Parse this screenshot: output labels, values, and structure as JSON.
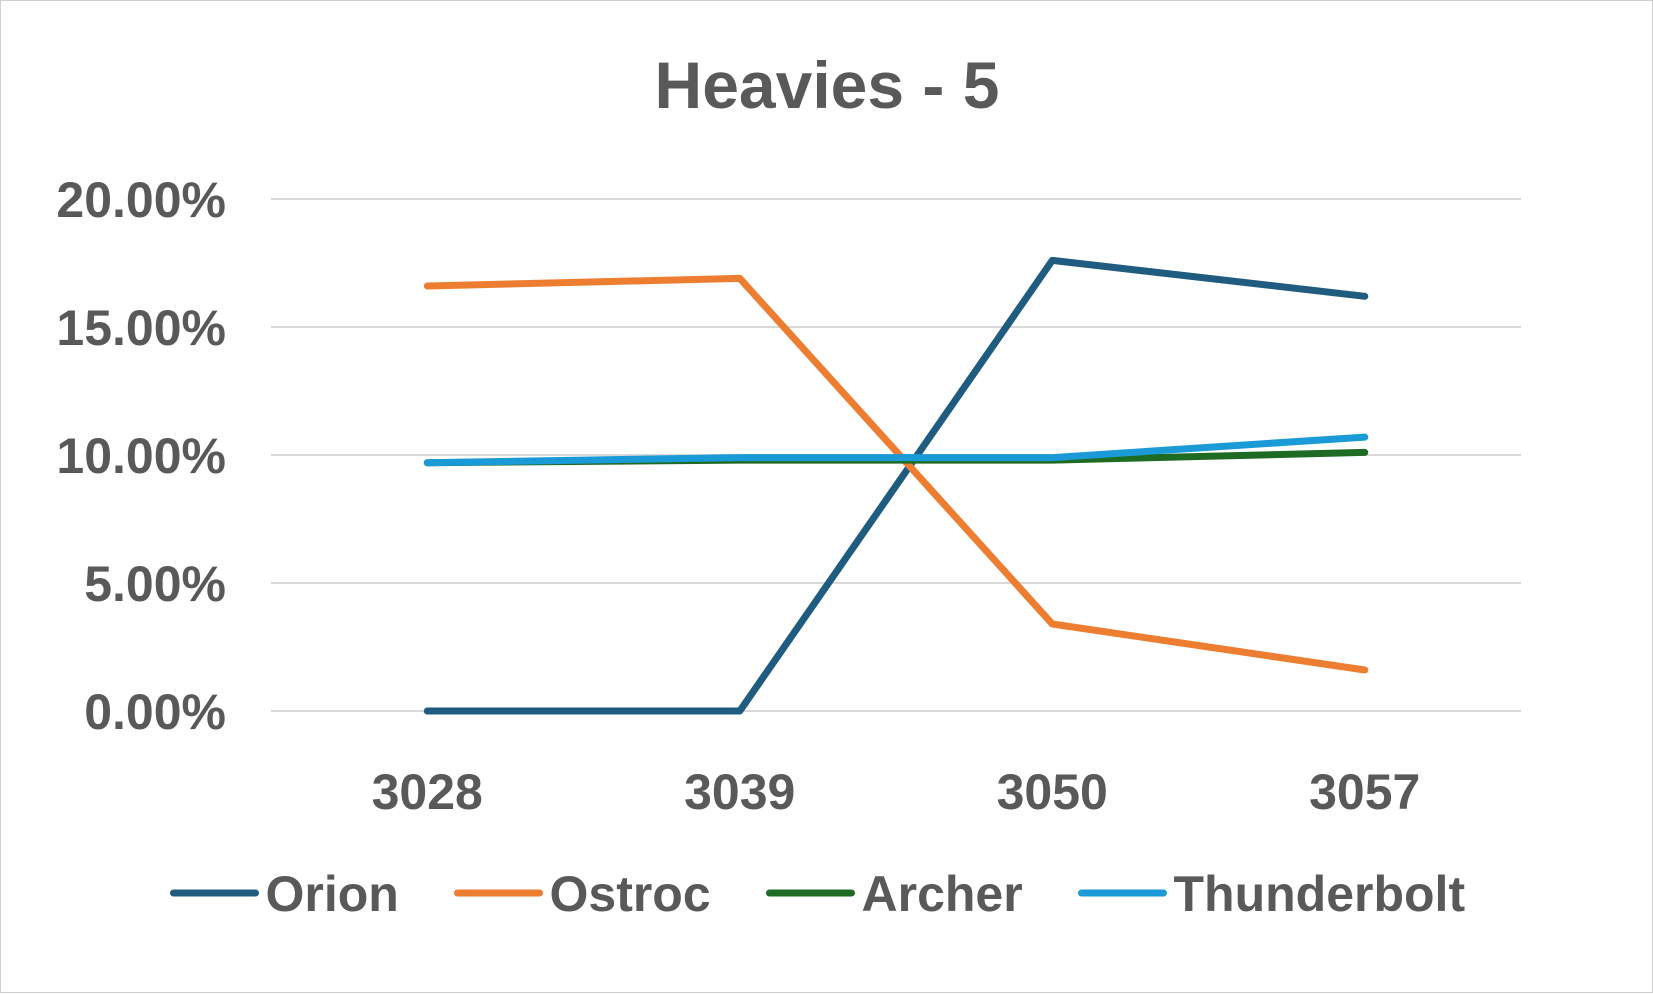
{
  "chart_data": {
    "type": "line",
    "title": "Heavies - 5",
    "xlabel": "",
    "ylabel": "",
    "categories": [
      "3028",
      "3039",
      "3050",
      "3057"
    ],
    "ylim": [
      0,
      0.2
    ],
    "y_ticks": [
      0,
      0.05,
      0.1,
      0.15,
      0.2
    ],
    "y_tick_labels": [
      "0.00%",
      "5.00%",
      "10.00%",
      "15.00%",
      "20.00%"
    ],
    "grid": true,
    "legend_position": "bottom",
    "series": [
      {
        "name": "Orion",
        "color": "#1f5c80",
        "values": [
          0.0,
          0.0,
          0.176,
          0.162
        ]
      },
      {
        "name": "Ostroc",
        "color": "#ed7d31",
        "values": [
          0.166,
          0.169,
          0.034,
          0.016
        ]
      },
      {
        "name": "Archer",
        "color": "#1e6b24",
        "values": [
          0.097,
          0.098,
          0.098,
          0.101
        ]
      },
      {
        "name": "Thunderbolt",
        "color": "#1a9ad6",
        "values": [
          0.097,
          0.099,
          0.099,
          0.107
        ]
      }
    ]
  }
}
